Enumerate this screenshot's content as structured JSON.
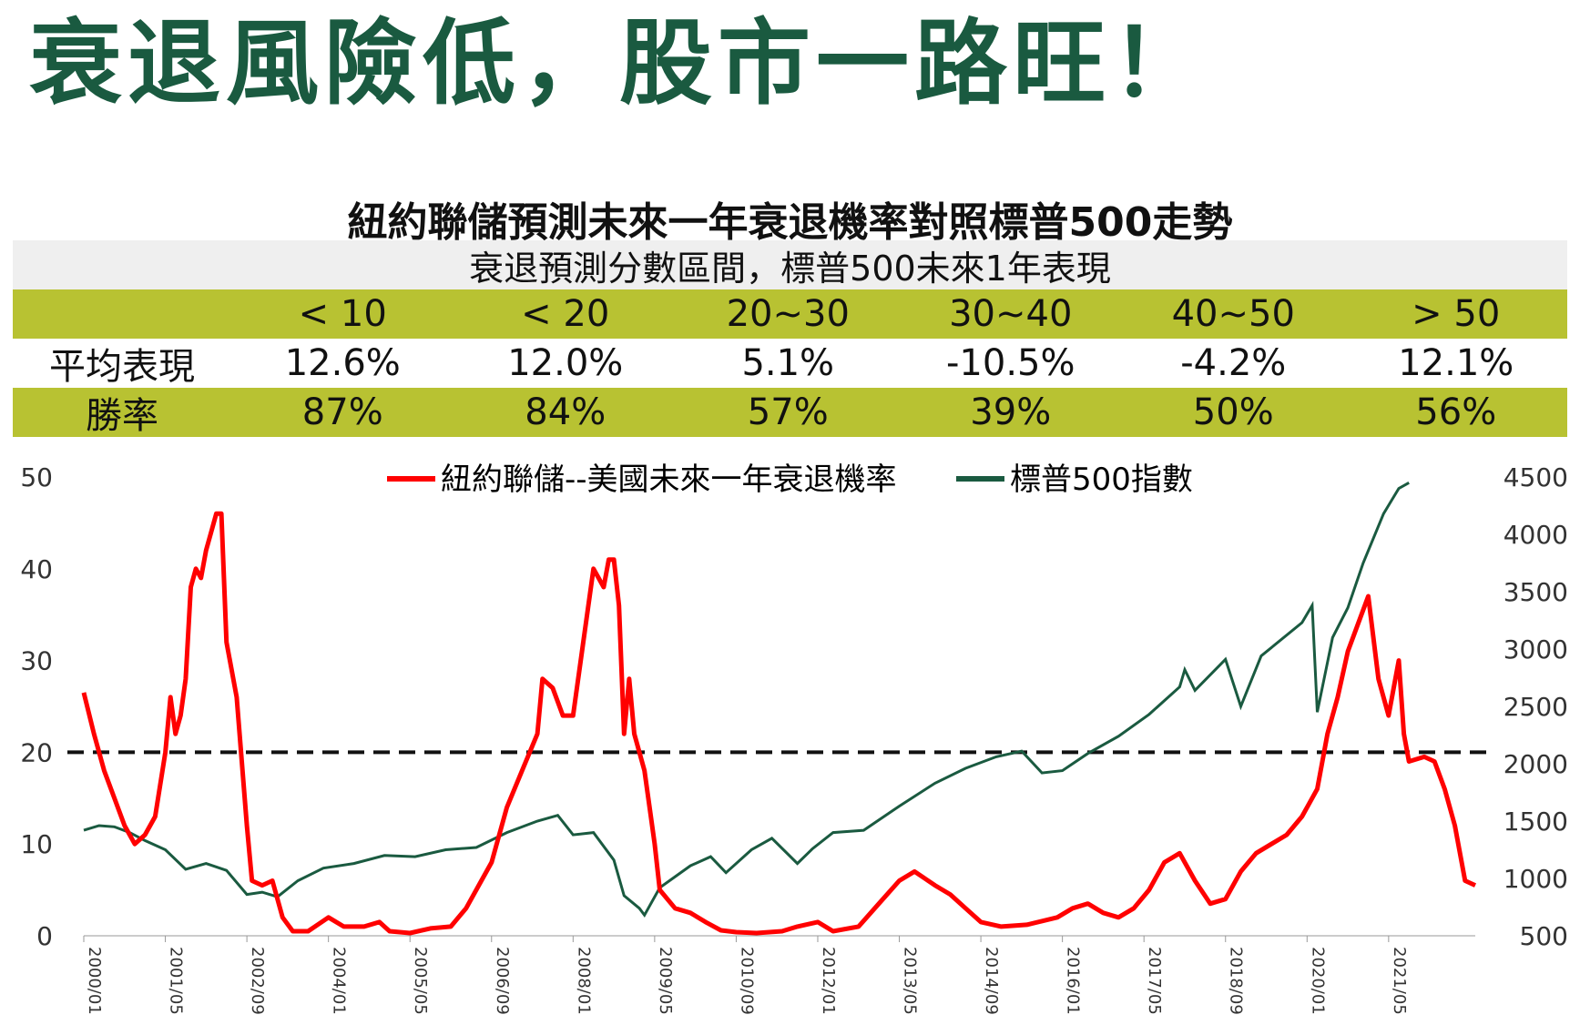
{
  "title": "衰退風險低，股市一路旺！",
  "subtitle": "紐約聯儲預測未來一年衰退機率對照標普500走勢",
  "table": {
    "caption": "衰退預測分數區間，標普500未來1年表現",
    "columns": [
      "< 10",
      "< 20",
      "20~30",
      "30~40",
      "40~50",
      "> 50"
    ],
    "rows": [
      {
        "label": "平均表現",
        "values": [
          "12.6%",
          "12.0%",
          "5.1%",
          "-10.5%",
          "-4.2%",
          "12.1%"
        ]
      },
      {
        "label": "勝率",
        "values": [
          "87%",
          "84%",
          "57%",
          "39%",
          "50%",
          "56%"
        ]
      }
    ]
  },
  "colors": {
    "title": "#1a5a40",
    "table_green": "#b8c232",
    "series_red": "#ff0000",
    "series_green": "#1a5a40"
  },
  "chart_data": {
    "type": "line",
    "legend": [
      "紐約聯儲--美國未來一年衰退機率",
      "標普500指數"
    ],
    "legend_position": "top",
    "y_left": {
      "ticks": [
        "0",
        "10",
        "20",
        "30",
        "40",
        "50"
      ],
      "range": [
        0,
        50
      ]
    },
    "y_right": {
      "ticks": [
        "500",
        "1000",
        "1500",
        "2000",
        "2500",
        "3000",
        "3500",
        "4000",
        "4500"
      ],
      "range": [
        500,
        4500
      ]
    },
    "x_ticks": [
      "2000/01",
      "2001/05",
      "2002/09",
      "2004/01",
      "2005/05",
      "2006/09",
      "2008/01",
      "2009/05",
      "2010/09",
      "2012/01",
      "2013/05",
      "2014/09",
      "2016/01",
      "2017/05",
      "2018/09",
      "2020/01",
      "2021/05"
    ],
    "x_range": [
      "2000/01",
      "2022/10"
    ],
    "reference_line": {
      "axis": "left",
      "value": 20,
      "style": "dashed"
    },
    "series": [
      {
        "name": "紐約聯儲--美國未來一年衰退機率",
        "axis": "left",
        "points": [
          [
            "2000/01",
            26.5
          ],
          [
            "2000/03",
            22
          ],
          [
            "2000/05",
            18
          ],
          [
            "2000/07",
            15
          ],
          [
            "2000/09",
            12
          ],
          [
            "2000/11",
            10
          ],
          [
            "2001/01",
            11
          ],
          [
            "2001/03",
            13
          ],
          [
            "2001/05",
            20
          ],
          [
            "2001/06",
            26
          ],
          [
            "2001/07",
            22
          ],
          [
            "2001/08",
            24
          ],
          [
            "2001/09",
            28
          ],
          [
            "2001/10",
            38
          ],
          [
            "2001/11",
            40
          ],
          [
            "2001/12",
            39
          ],
          [
            "2002/01",
            42
          ],
          [
            "2002/02",
            44
          ],
          [
            "2002/03",
            46
          ],
          [
            "2002/04",
            46
          ],
          [
            "2002/05",
            32
          ],
          [
            "2002/07",
            26
          ],
          [
            "2002/09",
            12
          ],
          [
            "2002/10",
            6
          ],
          [
            "2002/12",
            5.5
          ],
          [
            "2003/02",
            6
          ],
          [
            "2003/04",
            2
          ],
          [
            "2003/06",
            0.5
          ],
          [
            "2003/09",
            0.5
          ],
          [
            "2004/01",
            2
          ],
          [
            "2004/04",
            1
          ],
          [
            "2004/08",
            1
          ],
          [
            "2004/11",
            1.5
          ],
          [
            "2005/01",
            0.5
          ],
          [
            "2005/05",
            0.3
          ],
          [
            "2005/09",
            0.8
          ],
          [
            "2006/01",
            1
          ],
          [
            "2006/04",
            3
          ],
          [
            "2006/07",
            6
          ],
          [
            "2006/09",
            8
          ],
          [
            "2006/12",
            14
          ],
          [
            "2007/03",
            18
          ],
          [
            "2007/06",
            22
          ],
          [
            "2007/07",
            28
          ],
          [
            "2007/09",
            27
          ],
          [
            "2007/11",
            24
          ],
          [
            "2008/01",
            24
          ],
          [
            "2008/03",
            32
          ],
          [
            "2008/05",
            40
          ],
          [
            "2008/07",
            38
          ],
          [
            "2008/08",
            41
          ],
          [
            "2008/09",
            41
          ],
          [
            "2008/10",
            36
          ],
          [
            "2008/11",
            22
          ],
          [
            "2008/12",
            28
          ],
          [
            "2009/01",
            22
          ],
          [
            "2009/03",
            18
          ],
          [
            "2009/05",
            10
          ],
          [
            "2009/06",
            5
          ],
          [
            "2009/09",
            3
          ],
          [
            "2009/12",
            2.5
          ],
          [
            "2010/03",
            1.5
          ],
          [
            "2010/06",
            0.6
          ],
          [
            "2010/09",
            0.4
          ],
          [
            "2011/01",
            0.3
          ],
          [
            "2011/06",
            0.5
          ],
          [
            "2011/09",
            1
          ],
          [
            "2012/01",
            1.5
          ],
          [
            "2012/04",
            0.5
          ],
          [
            "2012/09",
            1
          ],
          [
            "2013/01",
            3.5
          ],
          [
            "2013/05",
            6
          ],
          [
            "2013/08",
            7
          ],
          [
            "2013/12",
            5.5
          ],
          [
            "2014/03",
            4.5
          ],
          [
            "2014/06",
            3
          ],
          [
            "2014/09",
            1.5
          ],
          [
            "2015/01",
            1
          ],
          [
            "2015/06",
            1.2
          ],
          [
            "2015/12",
            2
          ],
          [
            "2016/03",
            3
          ],
          [
            "2016/06",
            3.5
          ],
          [
            "2016/09",
            2.5
          ],
          [
            "2016/12",
            2
          ],
          [
            "2017/03",
            3
          ],
          [
            "2017/06",
            5
          ],
          [
            "2017/09",
            8
          ],
          [
            "2017/12",
            9
          ],
          [
            "2018/03",
            6
          ],
          [
            "2018/06",
            3.5
          ],
          [
            "2018/09",
            4
          ],
          [
            "2018/12",
            7
          ],
          [
            "2019/03",
            9
          ],
          [
            "2019/06",
            10
          ],
          [
            "2019/09",
            11
          ],
          [
            "2019/12",
            13
          ],
          [
            "2020/01",
            14
          ],
          [
            "2020/03",
            16
          ],
          [
            "2020/05",
            22
          ],
          [
            "2020/07",
            26
          ],
          [
            "2020/09",
            31
          ],
          [
            "2020/11",
            34
          ],
          [
            "2021/01",
            37
          ],
          [
            "2021/03",
            28
          ],
          [
            "2021/05",
            24
          ],
          [
            "2021/07",
            30
          ],
          [
            "2021/08",
            22
          ],
          [
            "2021/09",
            19
          ],
          [
            "2021/12",
            19.5
          ],
          [
            "2022/02",
            19
          ],
          [
            "2022/04",
            16
          ],
          [
            "2022/06",
            12
          ],
          [
            "2022/08",
            6
          ],
          [
            "2022/10",
            5.5
          ]
        ]
      },
      {
        "name": "標普500指數",
        "axis": "right",
        "points": [
          [
            "2000/01",
            1420
          ],
          [
            "2000/04",
            1460
          ],
          [
            "2000/07",
            1450
          ],
          [
            "2000/10",
            1400
          ],
          [
            "2001/01",
            1330
          ],
          [
            "2001/05",
            1250
          ],
          [
            "2001/09",
            1080
          ],
          [
            "2002/01",
            1130
          ],
          [
            "2002/05",
            1070
          ],
          [
            "2002/09",
            860
          ],
          [
            "2002/12",
            880
          ],
          [
            "2003/03",
            840
          ],
          [
            "2003/07",
            980
          ],
          [
            "2003/12",
            1090
          ],
          [
            "2004/06",
            1130
          ],
          [
            "2004/12",
            1200
          ],
          [
            "2005/06",
            1190
          ],
          [
            "2005/12",
            1250
          ],
          [
            "2006/06",
            1270
          ],
          [
            "2006/12",
            1400
          ],
          [
            "2007/06",
            1500
          ],
          [
            "2007/10",
            1550
          ],
          [
            "2008/01",
            1380
          ],
          [
            "2008/05",
            1400
          ],
          [
            "2008/09",
            1160
          ],
          [
            "2008/11",
            850
          ],
          [
            "2009/02",
            740
          ],
          [
            "2009/03",
            680
          ],
          [
            "2009/06",
            920
          ],
          [
            "2009/12",
            1110
          ],
          [
            "2010/04",
            1190
          ],
          [
            "2010/07",
            1050
          ],
          [
            "2010/12",
            1250
          ],
          [
            "2011/04",
            1350
          ],
          [
            "2011/09",
            1130
          ],
          [
            "2011/12",
            1260
          ],
          [
            "2012/04",
            1400
          ],
          [
            "2012/10",
            1420
          ],
          [
            "2013/05",
            1630
          ],
          [
            "2013/12",
            1830
          ],
          [
            "2014/06",
            1960
          ],
          [
            "2014/12",
            2060
          ],
          [
            "2015/05",
            2110
          ],
          [
            "2015/09",
            1920
          ],
          [
            "2016/01",
            1940
          ],
          [
            "2016/06",
            2090
          ],
          [
            "2016/12",
            2240
          ],
          [
            "2017/06",
            2430
          ],
          [
            "2017/12",
            2670
          ],
          [
            "2018/01",
            2820
          ],
          [
            "2018/03",
            2640
          ],
          [
            "2018/09",
            2910
          ],
          [
            "2018/12",
            2500
          ],
          [
            "2019/04",
            2940
          ],
          [
            "2019/12",
            3230
          ],
          [
            "2020/02",
            3380
          ],
          [
            "2020/03",
            2450
          ],
          [
            "2020/06",
            3100
          ],
          [
            "2020/09",
            3360
          ],
          [
            "2020/12",
            3750
          ],
          [
            "2021/04",
            4180
          ],
          [
            "2021/07",
            4400
          ],
          [
            "2021/09",
            4450
          ]
        ]
      }
    ]
  }
}
